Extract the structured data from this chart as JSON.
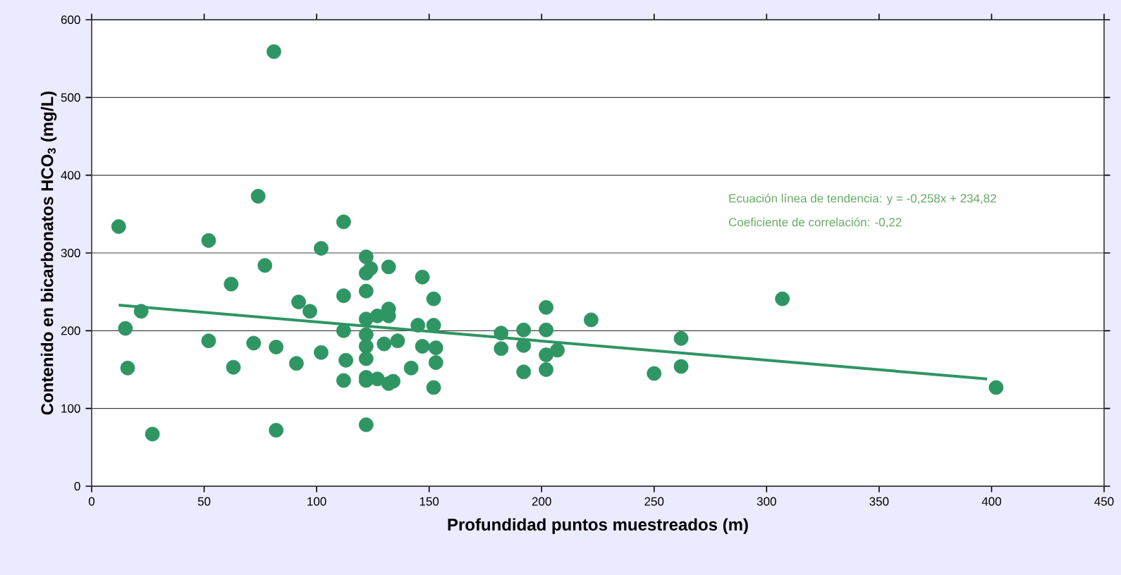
{
  "chart_data": {
    "type": "scatter",
    "xlabel": "Profundidad puntos muestreados (m)",
    "ylabel": "Contenido en bicarbonatos HCO$_{3}$ (mg/L)",
    "annotations": [
      "Ecuación línea de tendencia: y = -0,258x + 234,82",
      "Coeficiente de correlación: -0,22"
    ],
    "xlim": [
      0,
      450
    ],
    "xticks": [
      0,
      50,
      100,
      150,
      200,
      250,
      300,
      350,
      400,
      450
    ],
    "ylim": [
      0,
      600
    ],
    "yticks": [
      0,
      100,
      200,
      300,
      400,
      500,
      600
    ],
    "grid": "y",
    "marker": "circle",
    "series": [
      {
        "color": "#2e9563",
        "x": [
          12,
          15,
          16,
          22,
          27,
          52,
          52,
          62,
          63,
          72,
          74,
          77,
          81,
          82,
          82,
          91,
          92,
          97,
          102,
          102,
          112,
          112,
          112,
          113,
          112,
          122,
          122,
          124,
          122,
          132,
          122,
          122,
          122,
          122,
          122,
          122,
          127,
          132,
          134,
          122,
          127,
          132,
          132,
          130,
          136,
          142,
          147,
          145,
          147,
          152,
          152,
          153,
          153,
          152,
          182,
          182,
          192,
          192,
          192,
          202,
          202,
          202,
          202,
          207,
          222,
          250,
          262,
          262,
          307,
          402
        ],
        "values": [
          334,
          203,
          152,
          225,
          67,
          316,
          187,
          260,
          153,
          184,
          373,
          284,
          559,
          179,
          72,
          158,
          237,
          225,
          306,
          172,
          340,
          245,
          200,
          162,
          136,
          295,
          274,
          280,
          251,
          282,
          215,
          195,
          180,
          164,
          140,
          136,
          138,
          132,
          135,
          79,
          219,
          228,
          219,
          183,
          187,
          152,
          269,
          207,
          180,
          241,
          207,
          178,
          159,
          127,
          197,
          177,
          201,
          181,
          147,
          230,
          201,
          169,
          150,
          175,
          214,
          145,
          190,
          154,
          241,
          127
        ]
      },
      {
        "type": "line",
        "marker": "none",
        "color": "#2e9563",
        "x": [
          12,
          398
        ],
        "values": [
          233,
          138
        ]
      }
    ]
  }
}
